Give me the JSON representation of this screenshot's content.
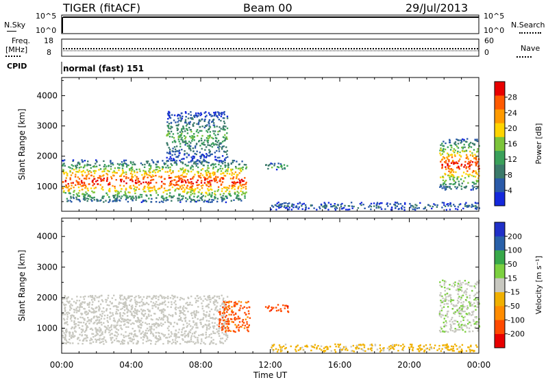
{
  "header": {
    "station": "TIGER (fitACF)",
    "beam": "Beam 00",
    "date": "29/Jul/2013"
  },
  "status_panels": {
    "nsky_label": "N.Sky",
    "nsky_ticks": [
      "10^5",
      "10^0"
    ],
    "nsearch_label": "N.Search",
    "nsearch_ticks": [
      "10^5",
      "10^0"
    ],
    "freq_label_1": "Freq.",
    "freq_label_2": "[MHz]",
    "freq_ticks": [
      "18",
      "8"
    ],
    "nave_label": "Nave",
    "nave_ticks": [
      "60",
      "0"
    ],
    "cpid_label": "CPID",
    "cpid_text": "normal (fast) 151"
  },
  "chart_data": [
    {
      "type": "heatmap",
      "title": "",
      "xlabel": "",
      "ylabel": "Slant Range [km]",
      "x_ticks": [
        "00:00",
        "04:00",
        "08:00",
        "12:00",
        "16:00",
        "20:00",
        "00:00"
      ],
      "xlim_hours": [
        0,
        24
      ],
      "y_ticks": [
        1000,
        2000,
        3000,
        4000
      ],
      "ylim": [
        180,
        4600
      ],
      "colorbar": {
        "label": "Power [dB]",
        "ticks": [
          "4",
          "8",
          "12",
          "16",
          "20",
          "24",
          "28"
        ],
        "range": [
          0,
          32
        ],
        "colors": [
          "#1428dc",
          "#2a5aa8",
          "#3b7a6a",
          "#3aa05a",
          "#7cc43a",
          "#ffd400",
          "#ff9a00",
          "#ff5a00",
          "#e80000"
        ]
      },
      "echo_regions": [
        {
          "t_start": 0.0,
          "t_end": 10.6,
          "r_min": 500,
          "r_max": 1900,
          "peak_power": 30
        },
        {
          "t_start": 6.0,
          "t_end": 9.5,
          "r_min": 1900,
          "r_max": 3500,
          "peak_power": 14
        },
        {
          "t_start": 11.7,
          "t_end": 13.0,
          "r_min": 1550,
          "r_max": 1800,
          "peak_power": 14
        },
        {
          "t_start": 12.0,
          "t_end": 24.0,
          "r_min": 250,
          "r_max": 500,
          "peak_power": 8
        },
        {
          "t_start": 21.7,
          "t_end": 24.0,
          "r_min": 900,
          "r_max": 2600,
          "peak_power": 30
        }
      ]
    },
    {
      "type": "heatmap",
      "title": "",
      "xlabel": "Time UT",
      "ylabel": "Slant Range [km]",
      "x_ticks": [
        "00:00",
        "04:00",
        "08:00",
        "12:00",
        "16:00",
        "20:00",
        "00:00"
      ],
      "xlim_hours": [
        0,
        24
      ],
      "y_ticks": [
        1000,
        2000,
        3000,
        4000
      ],
      "ylim": [
        180,
        4600
      ],
      "colorbar": {
        "label": "Velocity [m s⁻¹]",
        "ticks": [
          "200",
          "100",
          "50",
          "15",
          "-15",
          "-50",
          "-100",
          "-200"
        ],
        "range": [
          -250,
          250
        ],
        "colors": [
          "#e80000",
          "#ff4a00",
          "#ff8c00",
          "#f0b000",
          "#c8c8c0",
          "#7cd040",
          "#38a84a",
          "#2860a8",
          "#2030c8"
        ]
      },
      "echo_regions": [
        {
          "t_start": 0.0,
          "t_end": 9.5,
          "r_min": 500,
          "r_max": 2100,
          "velocity": 0
        },
        {
          "t_start": 9.0,
          "t_end": 10.8,
          "r_min": 900,
          "r_max": 1900,
          "velocity": -150
        },
        {
          "t_start": 11.7,
          "t_end": 13.0,
          "r_min": 1550,
          "r_max": 1800,
          "velocity": -180
        },
        {
          "t_start": 12.0,
          "t_end": 24.0,
          "r_min": 250,
          "r_max": 500,
          "velocity": -40
        },
        {
          "t_start": 21.7,
          "t_end": 24.0,
          "r_min": 900,
          "r_max": 2600,
          "velocity": 20
        }
      ]
    }
  ]
}
